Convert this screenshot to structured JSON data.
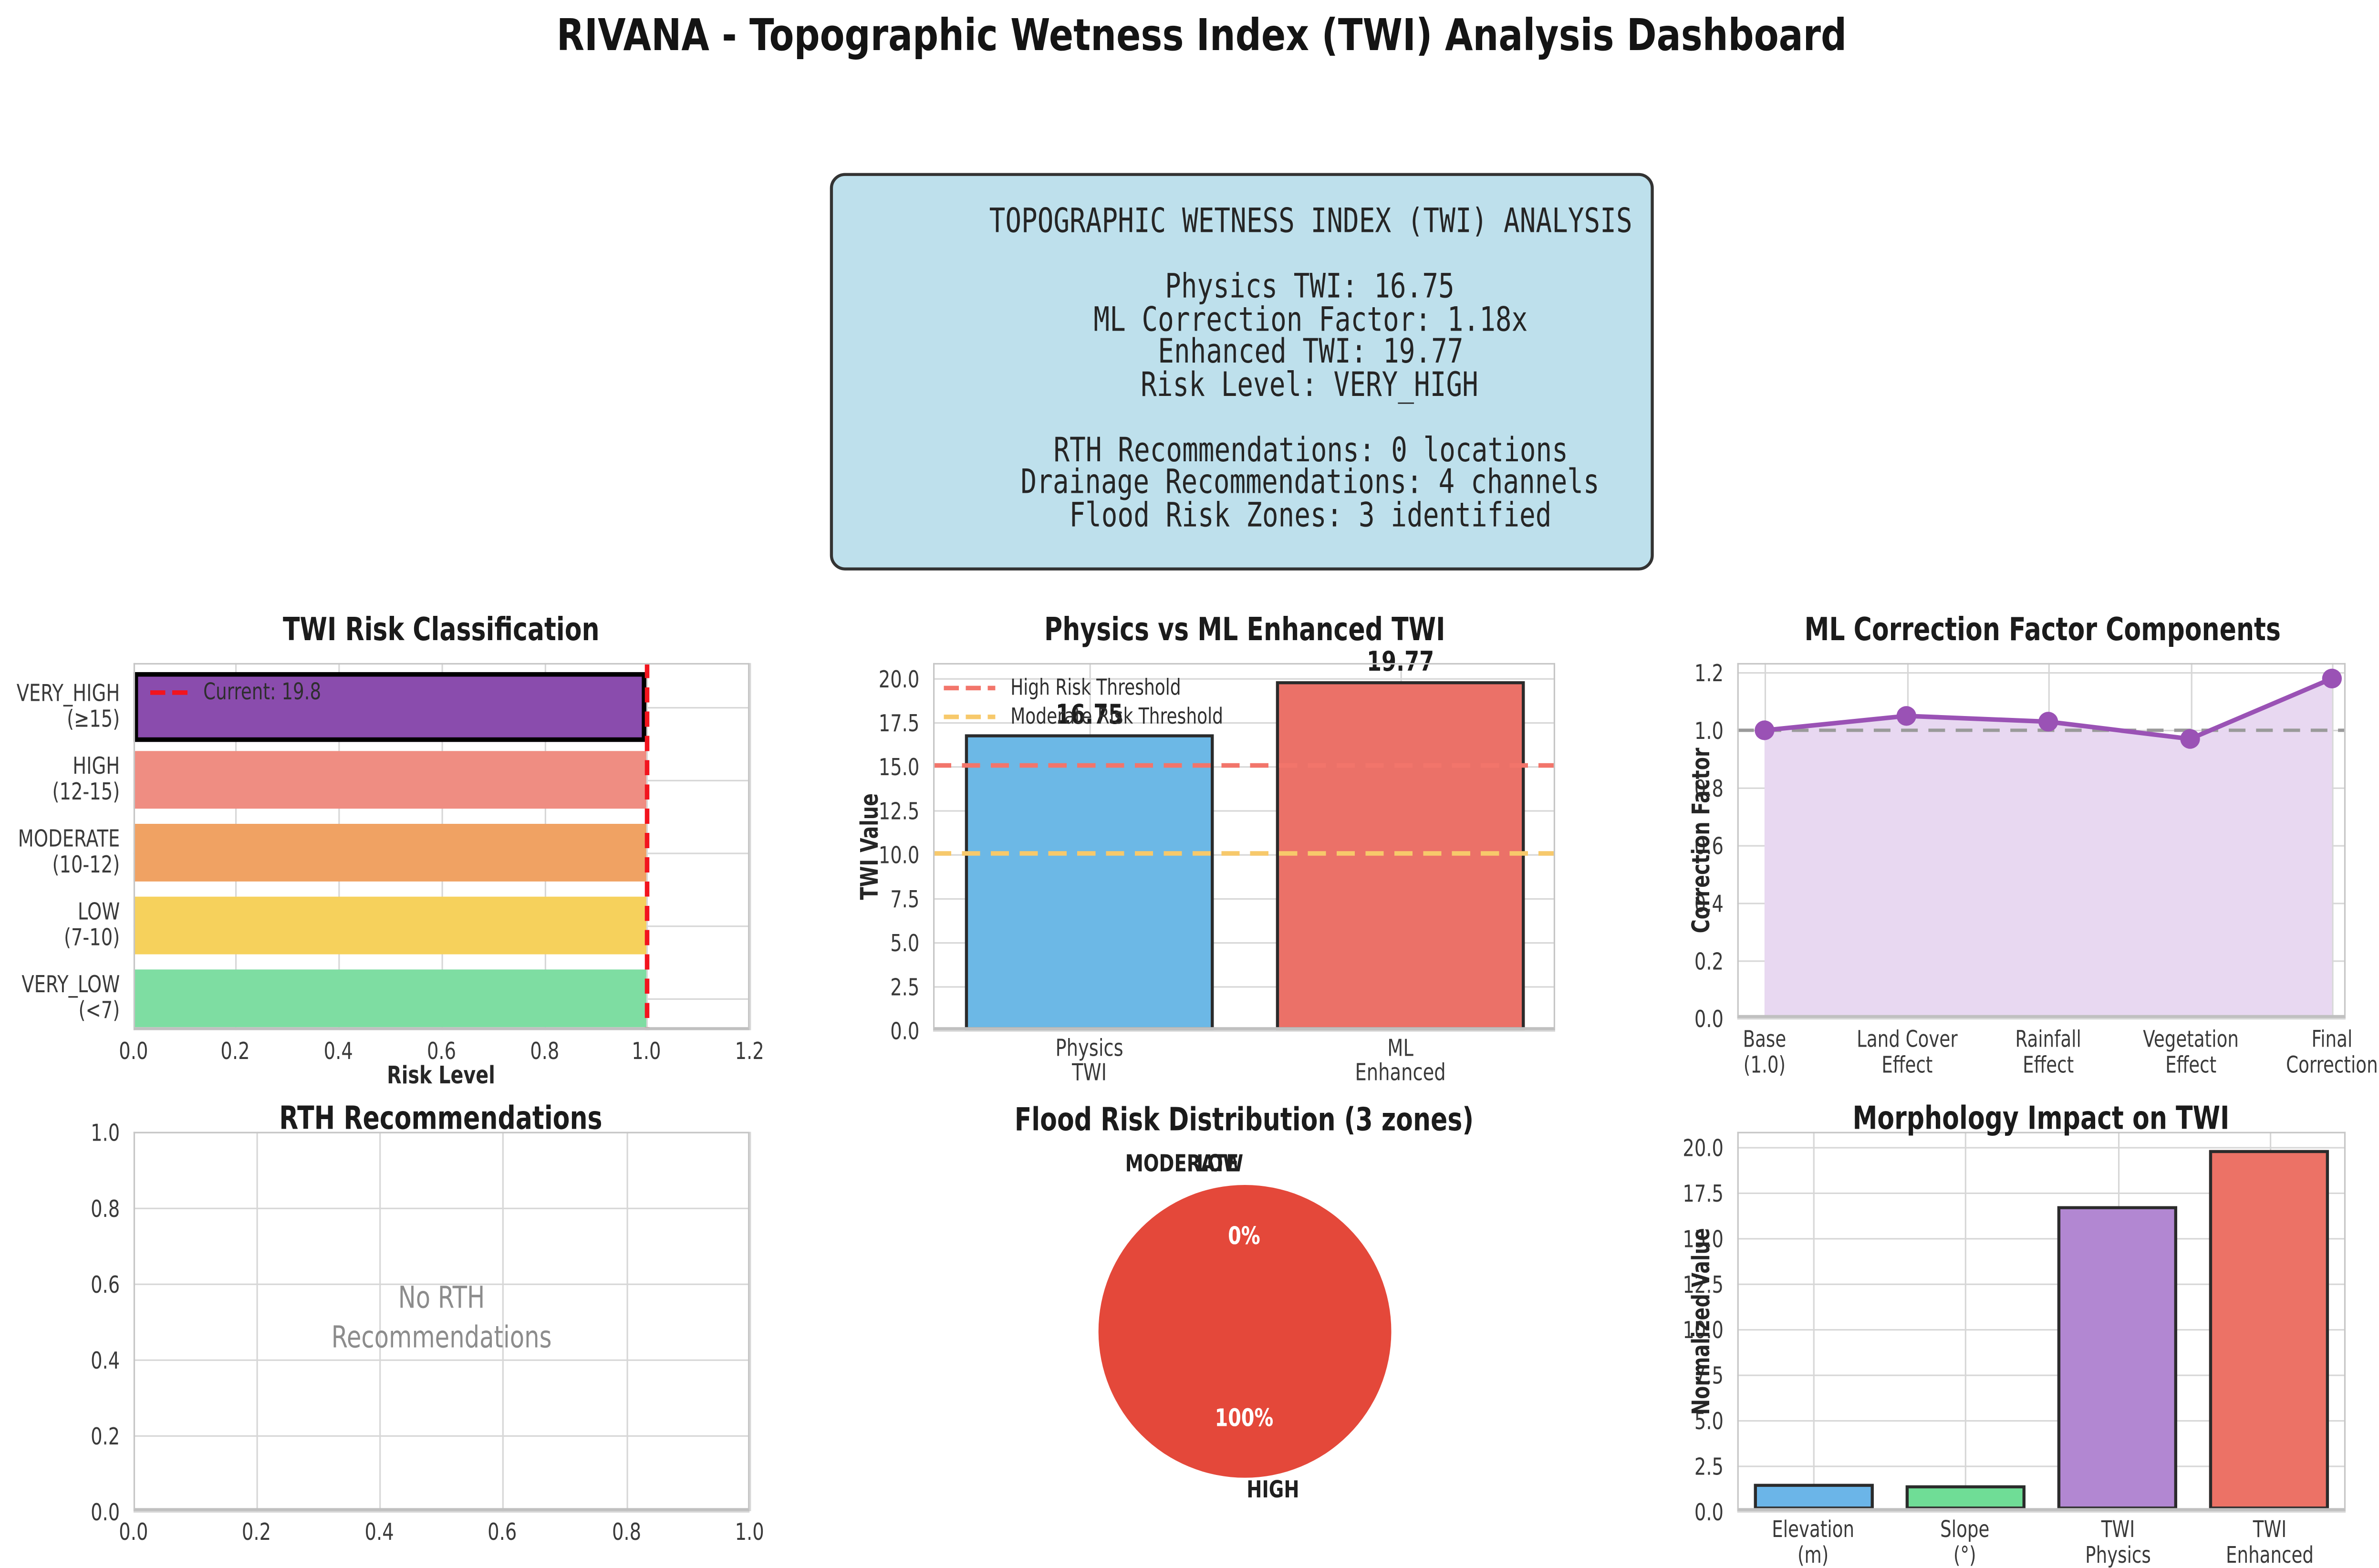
{
  "page_title": "RIVANA - Topographic Wetness Index (TWI) Analysis Dashboard",
  "summary_box": {
    "lines": [
      "TOPOGRAPHIC WETNESS INDEX (TWI) ANALYSIS",
      "",
      "Physics TWI: 16.75",
      "ML Correction Factor: 1.18x",
      "Enhanced TWI: 19.77",
      "Risk Level: VERY_HIGH",
      "",
      "RTH Recommendations: 0 locations",
      "Drainage Recommendations: 4 channels",
      "Flood Risk Zones: 3 identified"
    ]
  },
  "colors": {
    "info_bg": "#bee0ec",
    "grid": "#d7d7d7",
    "frame": "#c6c6c6",
    "bar_edge": "#2b2b2b",
    "tick_text": "#3a3a3a",
    "muted_text": "#8c8c8c"
  },
  "chart_data": [
    {
      "type": "bar",
      "orientation": "horizontal",
      "title": "TWI Risk Classification",
      "xlabel": "Risk Level",
      "categories": [
        "VERY_HIGH\n(≥15)",
        "HIGH\n(12-15)",
        "MODERATE\n(10-12)",
        "LOW\n(7-10)",
        "VERY_LOW\n(<7)"
      ],
      "values": [
        1.0,
        1.0,
        1.0,
        1.0,
        1.0
      ],
      "bar_colors": [
        "#8a4cad",
        "#ef8d82",
        "#f0a263",
        "#f6d15c",
        "#7edda2"
      ],
      "highlight_index": 0,
      "xlim": [
        0,
        1.2
      ],
      "xticks": [
        "0.0",
        "0.2",
        "0.4",
        "0.6",
        "0.8",
        "1.0",
        "1.2"
      ],
      "grid": true,
      "current_marker": {
        "value": 1.0,
        "label": "Current: 19.8",
        "color": "#f2141e"
      }
    },
    {
      "type": "bar",
      "orientation": "vertical",
      "title": "Physics vs ML Enhanced TWI",
      "ylabel": "TWI Value",
      "categories": [
        "Physics\nTWI",
        "ML\nEnhanced"
      ],
      "values": [
        16.75,
        19.77
      ],
      "value_labels": [
        "16.75",
        "19.77"
      ],
      "bar_colors": [
        "#6cb8e6",
        "#eb7168"
      ],
      "ylim": [
        0,
        20.8
      ],
      "yticks": [
        "0.0",
        "2.5",
        "5.0",
        "7.5",
        "10.0",
        "12.5",
        "15.0",
        "17.5",
        "20.0"
      ],
      "thresholds": [
        {
          "label": "High Risk Threshold",
          "value": 15,
          "color": "#f2756b"
        },
        {
          "label": "Moderate Risk Threshold",
          "value": 10,
          "color": "#f7c96b"
        }
      ],
      "legend_position": "upper left",
      "grid": true
    },
    {
      "type": "line",
      "title": "ML Correction Factor Components",
      "ylabel": "Correction Factor",
      "categories": [
        "Base\n(1.0)",
        "Land Cover\nEffect",
        "Rainfall\nEffect",
        "Vegetation\nEffect",
        "Final\nCorrection"
      ],
      "values": [
        1.0,
        1.05,
        1.03,
        0.97,
        1.18
      ],
      "ylim": [
        0,
        1.234
      ],
      "yticks": [
        "0.0",
        "0.2",
        "0.4",
        "0.6",
        "0.8",
        "1.0",
        "1.2"
      ],
      "line_color": "#9a52b5",
      "fill_color": "#e8d8f1",
      "marker": "circle",
      "ref_line": {
        "value": 1.0,
        "color": "#9a9a9a",
        "style": "dashed"
      },
      "grid": true
    },
    {
      "type": "empty",
      "title": "RTH Recommendations",
      "message": "No RTH\nRecommendations",
      "xlim": [
        0,
        1
      ],
      "ylim": [
        0,
        1
      ],
      "xticks": [
        "0.0",
        "0.2",
        "0.4",
        "0.6",
        "0.8",
        "1.0"
      ],
      "yticks": [
        "0.0",
        "0.2",
        "0.4",
        "0.6",
        "0.8",
        "1.0"
      ],
      "grid": true
    },
    {
      "type": "pie",
      "title": "Flood Risk Distribution (3 zones)",
      "slices": [
        {
          "label": "HIGH",
          "pct": 100,
          "pct_label": "100%",
          "color": "#e4483a"
        },
        {
          "label": "MODERATE",
          "pct": 0,
          "pct_label": "0%",
          "color": "#e4483a"
        },
        {
          "label": "LOW",
          "pct": 0,
          "pct_label": "0%",
          "color": "#e4483a"
        }
      ]
    },
    {
      "type": "bar",
      "orientation": "vertical",
      "title": "Morphology Impact on TWI",
      "ylabel": "Normalized Value",
      "categories": [
        "Elevation\n(m)",
        "Slope\n(°)",
        "TWI\nPhysics",
        "TWI\nEnhanced"
      ],
      "values": [
        1.5,
        1.4,
        16.75,
        19.77
      ],
      "bar_colors": [
        "#6bb5e8",
        "#6fdd96",
        "#b287d2",
        "#ec7266"
      ],
      "ylim": [
        0,
        20.8
      ],
      "yticks": [
        "0.0",
        "2.5",
        "5.0",
        "7.5",
        "10.0",
        "12.5",
        "15.0",
        "17.5",
        "20.0"
      ],
      "grid": true
    }
  ]
}
